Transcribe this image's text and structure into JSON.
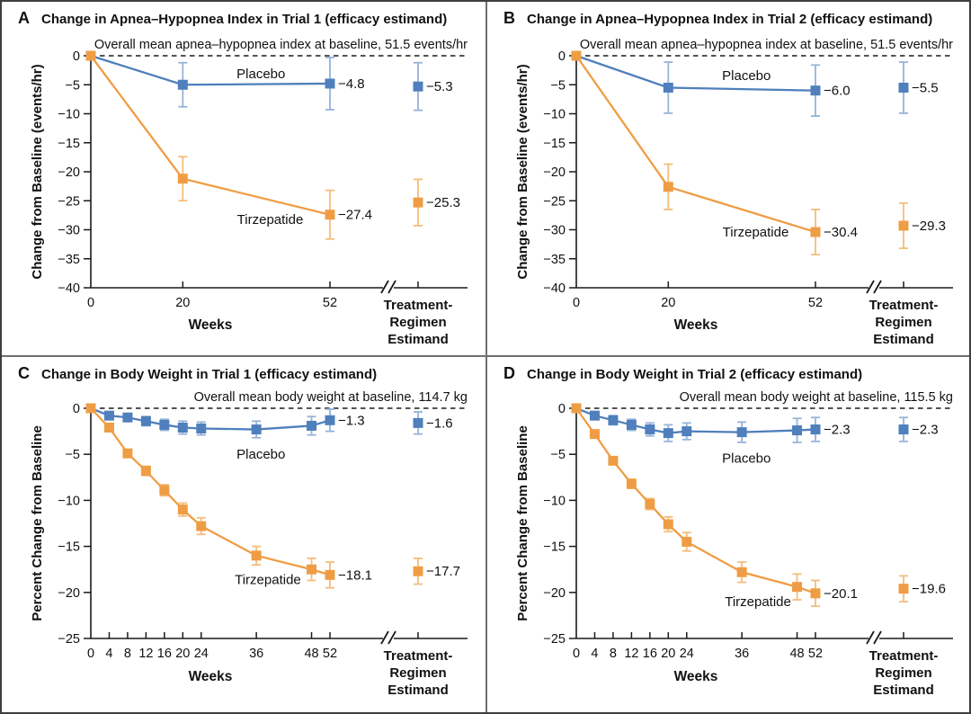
{
  "chart_data": [
    {
      "id": "A",
      "letter": "A",
      "type": "line",
      "title": "Change in Apnea–Hypopnea Index in Trial 1 (efficacy estimand)",
      "baseline_note": "Overall mean apnea–hypopnea index at baseline, 51.5 events/hr",
      "ylabel": "Change from Baseline (events/hr)",
      "xlabel": "Weeks",
      "tre_axis_label": [
        "Treatment-",
        "Regimen",
        "Estimand"
      ],
      "ylim": [
        0,
        -40
      ],
      "yticks": [
        0,
        -5,
        -10,
        -15,
        -20,
        -25,
        -30,
        -35,
        -40
      ],
      "xticks": [
        0,
        20,
        52
      ],
      "series": [
        {
          "name": "Placebo",
          "color": "#4f7fbc",
          "error_color": "#96b3d9",
          "x": [
            0,
            20,
            52
          ],
          "y": [
            0,
            -5.0,
            -4.8
          ],
          "err": [
            0,
            3.8,
            4.5
          ],
          "end_value_label": "−4.8",
          "tre": {
            "y": -5.3,
            "err": 4.1,
            "label": "−5.3"
          },
          "label_pos": {
            "week": 37,
            "value": -3.1
          }
        },
        {
          "name": "Tirzepatide",
          "color": "#ef9d45",
          "error_color": "#f3bd7c",
          "x": [
            0,
            20,
            52
          ],
          "y": [
            0,
            -21.2,
            -27.4
          ],
          "err": [
            0,
            3.8,
            4.2
          ],
          "end_value_label": "−27.4",
          "tre": {
            "y": -25.3,
            "err": 4.0,
            "label": "−25.3"
          },
          "label_pos": {
            "week": 39,
            "value": -28.2
          }
        }
      ]
    },
    {
      "id": "B",
      "letter": "B",
      "type": "line",
      "title": "Change in Apnea–Hypopnea Index in Trial 2 (efficacy estimand)",
      "baseline_note": "Overall mean apnea–hypopnea index at baseline, 51.5 events/hr",
      "ylabel": "Change from Baseline (events/hr)",
      "xlabel": "Weeks",
      "tre_axis_label": [
        "Treatment-",
        "Regimen",
        "Estimand"
      ],
      "ylim": [
        0,
        -40
      ],
      "yticks": [
        0,
        -5,
        -10,
        -15,
        -20,
        -25,
        -30,
        -35,
        -40
      ],
      "xticks": [
        0,
        20,
        52
      ],
      "series": [
        {
          "name": "Placebo",
          "color": "#4f7fbc",
          "error_color": "#96b3d9",
          "x": [
            0,
            20,
            52
          ],
          "y": [
            0,
            -5.5,
            -6.0
          ],
          "err": [
            0,
            4.4,
            4.4
          ],
          "end_value_label": "−6.0",
          "tre": {
            "y": -5.5,
            "err": 4.4,
            "label": "−5.5"
          },
          "label_pos": {
            "week": 37,
            "value": -3.4
          }
        },
        {
          "name": "Tirzepatide",
          "color": "#ef9d45",
          "error_color": "#f3bd7c",
          "x": [
            0,
            20,
            52
          ],
          "y": [
            0,
            -22.6,
            -30.4
          ],
          "err": [
            0,
            3.9,
            3.9
          ],
          "end_value_label": "−30.4",
          "tre": {
            "y": -29.3,
            "err": 3.9,
            "label": "−29.3"
          },
          "label_pos": {
            "week": 39,
            "value": -30.4
          }
        }
      ]
    },
    {
      "id": "C",
      "letter": "C",
      "type": "line",
      "title": "Change in Body Weight in Trial 1 (efficacy estimand)",
      "baseline_note": "Overall mean body weight at baseline, 114.7 kg",
      "ylabel": "Percent Change from Baseline",
      "xlabel": "Weeks",
      "tre_axis_label": [
        "Treatment-",
        "Regimen",
        "Estimand"
      ],
      "ylim": [
        0,
        -25
      ],
      "yticks": [
        0,
        -5,
        -10,
        -15,
        -20,
        -25
      ],
      "xticks": [
        0,
        4,
        8,
        12,
        16,
        20,
        24,
        36,
        48,
        52
      ],
      "series": [
        {
          "name": "Placebo",
          "color": "#4f7fbc",
          "error_color": "#96b3d9",
          "x": [
            0,
            4,
            8,
            12,
            16,
            20,
            24,
            36,
            48,
            52
          ],
          "y": [
            0,
            -0.8,
            -1.0,
            -1.4,
            -1.8,
            -2.1,
            -2.2,
            -2.3,
            -1.9,
            -1.3
          ],
          "err": [
            0,
            0.4,
            0.4,
            0.5,
            0.6,
            0.7,
            0.7,
            0.9,
            1.0,
            1.2
          ],
          "end_value_label": "−1.3",
          "tre": {
            "y": -1.6,
            "err": 1.2,
            "label": "−1.6"
          },
          "label_pos": {
            "week": 37,
            "value": -5.0
          }
        },
        {
          "name": "Tirzepatide",
          "color": "#ef9d45",
          "error_color": "#f3bd7c",
          "x": [
            0,
            4,
            8,
            12,
            16,
            20,
            24,
            36,
            48,
            52
          ],
          "y": [
            0,
            -2.1,
            -4.9,
            -6.8,
            -8.9,
            -11.0,
            -12.8,
            -16.0,
            -17.5,
            -18.1
          ],
          "err": [
            0,
            0.3,
            0.4,
            0.5,
            0.6,
            0.7,
            0.9,
            1.0,
            1.2,
            1.4
          ],
          "end_value_label": "−18.1",
          "tre": {
            "y": -17.7,
            "err": 1.4,
            "label": "−17.7"
          },
          "label_pos": {
            "week": 38.5,
            "value": -18.6
          }
        }
      ]
    },
    {
      "id": "D",
      "letter": "D",
      "type": "line",
      "title": "Change in Body Weight in Trial 2 (efficacy estimand)",
      "baseline_note": "Overall mean body weight at baseline, 115.5 kg",
      "ylabel": "Percent Change from Baseline",
      "xlabel": "Weeks",
      "tre_axis_label": [
        "Treatment-",
        "Regimen",
        "Estimand"
      ],
      "ylim": [
        0,
        -25
      ],
      "yticks": [
        0,
        -5,
        -10,
        -15,
        -20,
        -25
      ],
      "xticks": [
        0,
        4,
        8,
        12,
        16,
        20,
        24,
        36,
        48,
        52
      ],
      "series": [
        {
          "name": "Placebo",
          "color": "#4f7fbc",
          "error_color": "#96b3d9",
          "x": [
            0,
            4,
            8,
            12,
            16,
            20,
            24,
            36,
            48,
            52
          ],
          "y": [
            0,
            -0.8,
            -1.3,
            -1.8,
            -2.3,
            -2.7,
            -2.5,
            -2.6,
            -2.4,
            -2.3
          ],
          "err": [
            0,
            0.4,
            0.5,
            0.6,
            0.7,
            0.9,
            0.9,
            1.1,
            1.3,
            1.3
          ],
          "end_value_label": "−2.3",
          "tre": {
            "y": -2.3,
            "err": 1.3,
            "label": "−2.3"
          },
          "label_pos": {
            "week": 37,
            "value": -5.4
          }
        },
        {
          "name": "Tirzepatide",
          "color": "#ef9d45",
          "error_color": "#f3bd7c",
          "x": [
            0,
            4,
            8,
            12,
            16,
            20,
            24,
            36,
            48,
            52
          ],
          "y": [
            0,
            -2.8,
            -5.7,
            -8.2,
            -10.4,
            -12.6,
            -14.5,
            -17.8,
            -19.4,
            -20.1
          ],
          "err": [
            0,
            0.3,
            0.4,
            0.5,
            0.6,
            0.8,
            1.0,
            1.1,
            1.4,
            1.4
          ],
          "end_value_label": "−20.1",
          "tre": {
            "y": -19.6,
            "err": 1.4,
            "label": "−19.6"
          },
          "label_pos": {
            "week": 39.5,
            "value": -21.0
          }
        }
      ]
    }
  ]
}
